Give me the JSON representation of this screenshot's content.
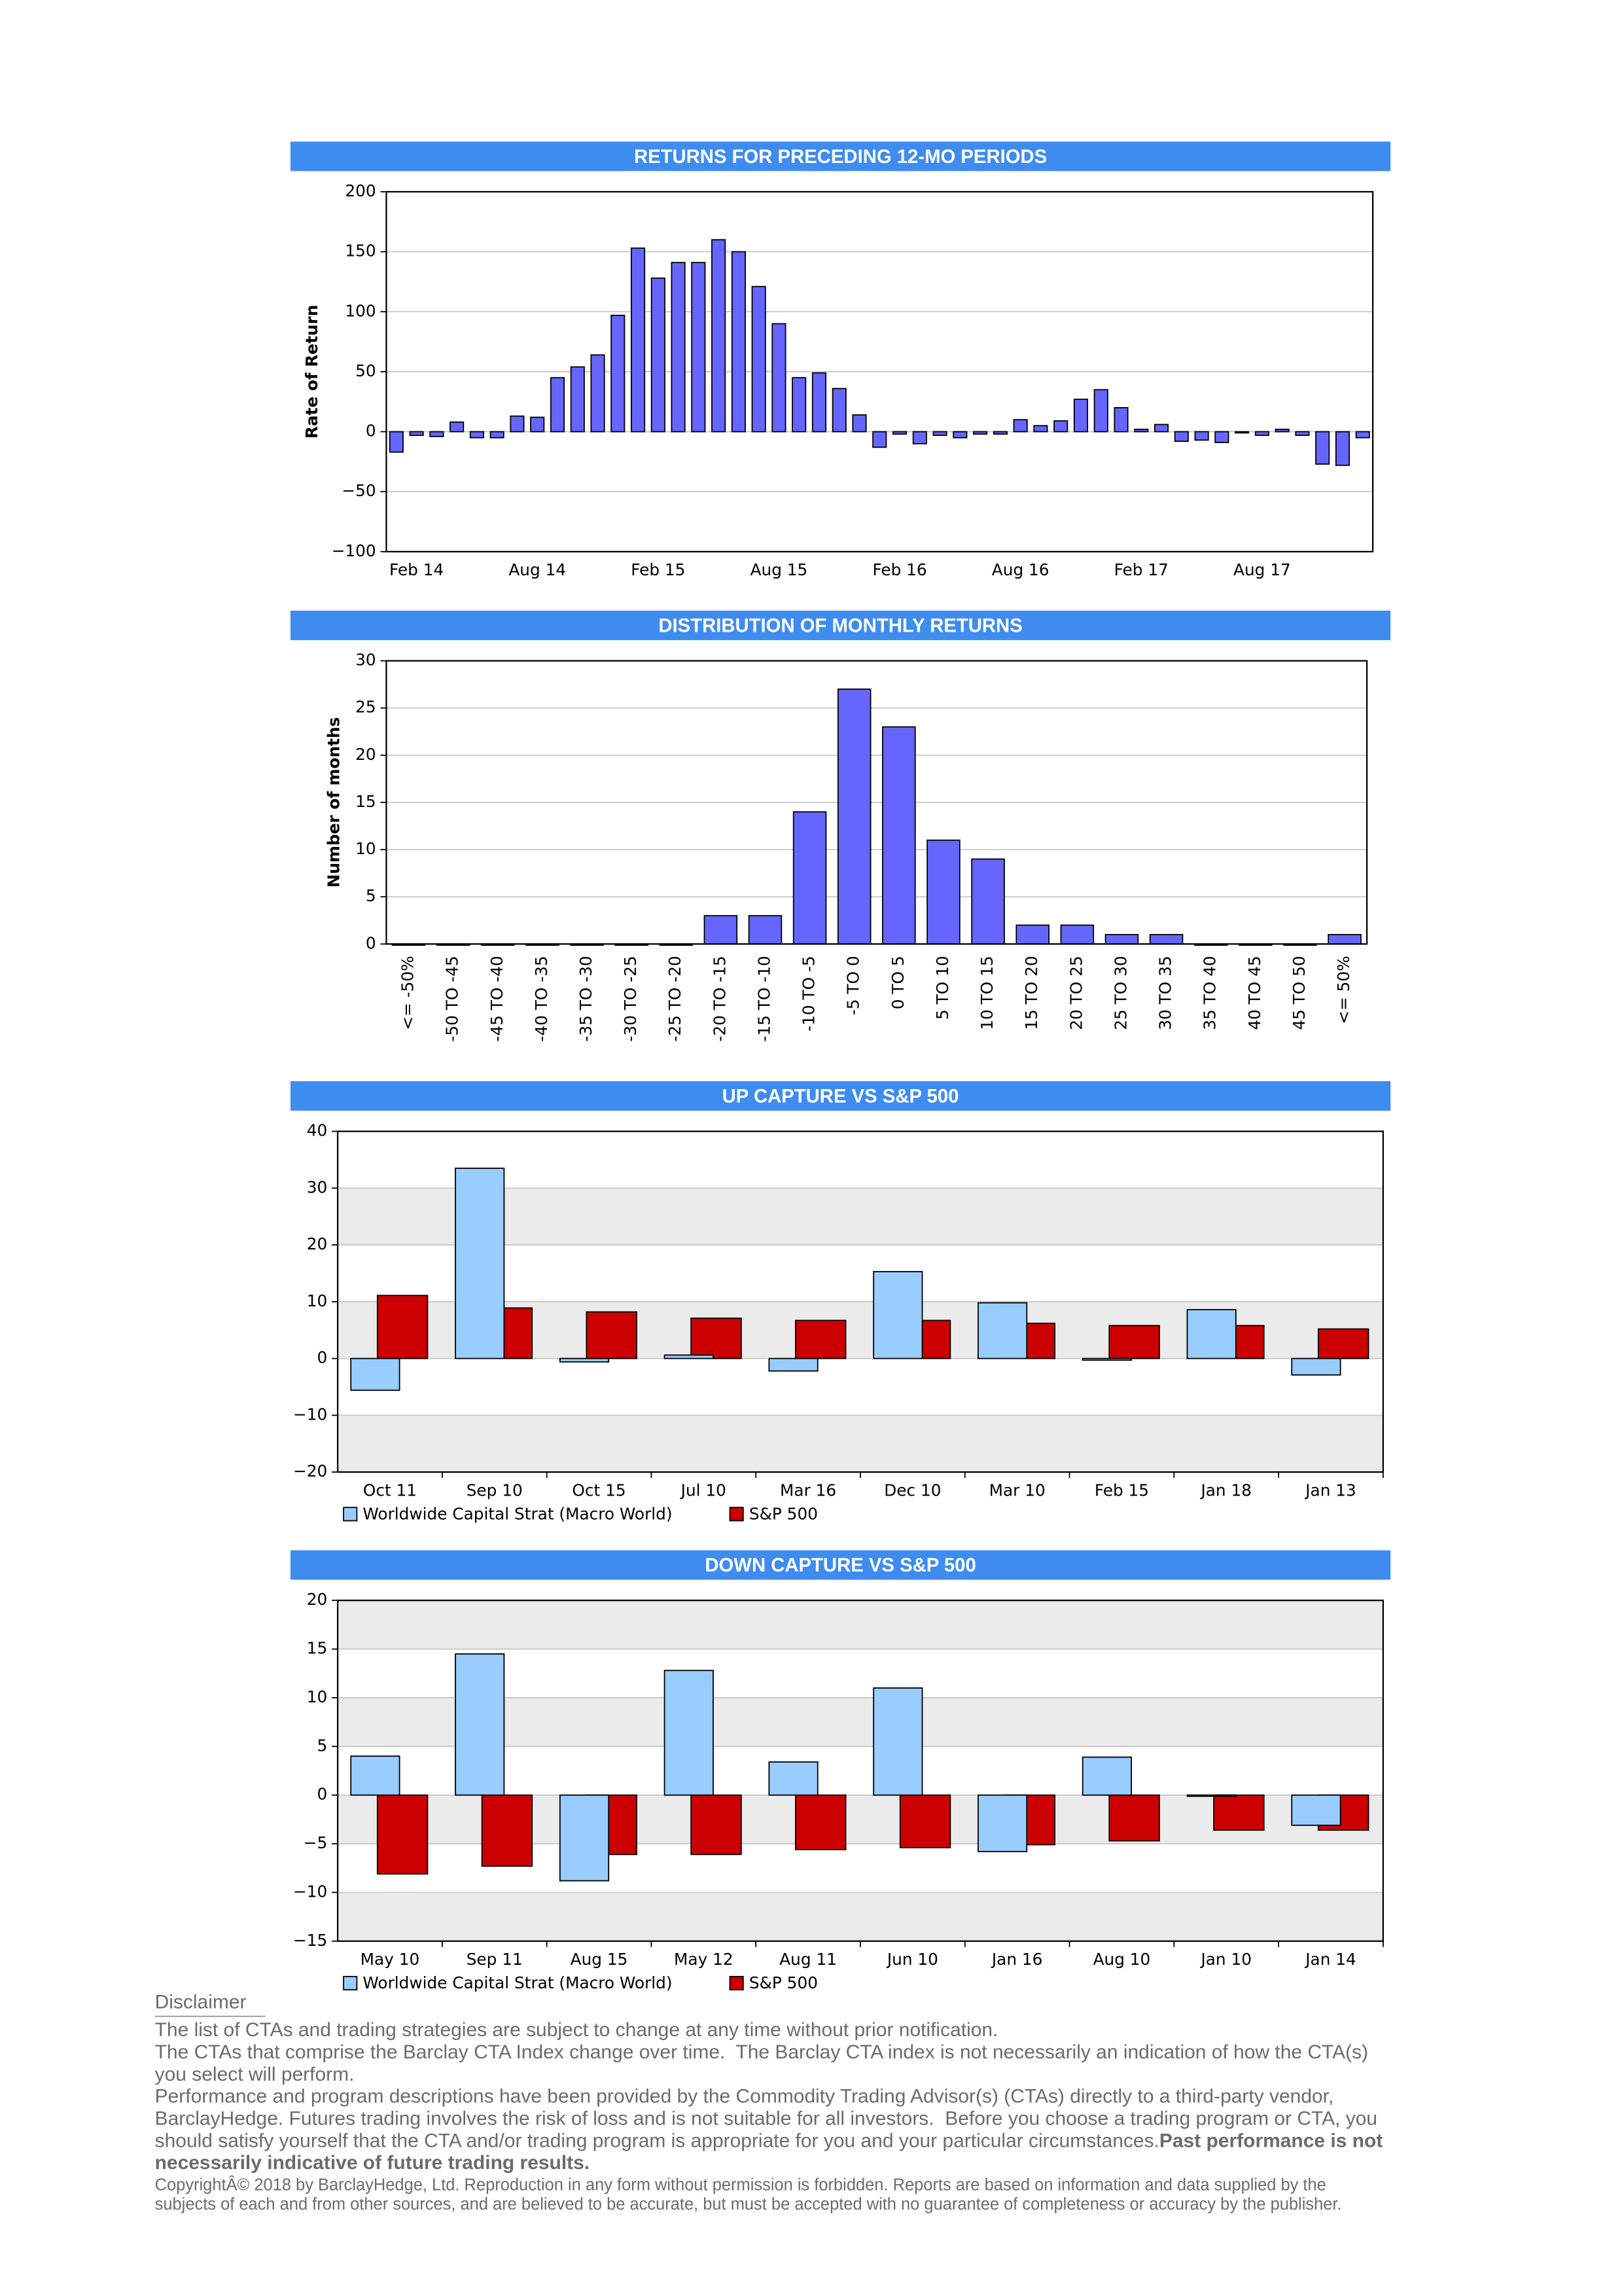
{
  "chart_data": [
    {
      "type": "bar",
      "title": "RETURNS FOR PRECEDING 12-MO PERIODS",
      "ylabel": "Rate of Return",
      "categories": [
        null,
        "Feb 14",
        null,
        null,
        null,
        null,
        null,
        "Aug 14",
        null,
        null,
        null,
        null,
        null,
        "Feb 15",
        null,
        null,
        null,
        null,
        null,
        "Aug 15",
        null,
        null,
        null,
        null,
        null,
        "Feb 16",
        null,
        null,
        null,
        null,
        null,
        "Aug 16",
        null,
        null,
        null,
        null,
        null,
        "Feb 17",
        null,
        null,
        null,
        null,
        null,
        "Aug 17",
        null,
        null,
        null,
        null,
        null
      ],
      "values": [
        -17,
        -3,
        -4,
        8,
        -5,
        -5,
        13,
        12,
        45,
        54,
        64,
        97,
        153,
        128,
        141,
        141,
        160,
        150,
        121,
        90,
        45,
        49,
        36,
        14,
        -13,
        -2,
        -10,
        -3,
        -5,
        -2,
        -2,
        10,
        5,
        9,
        27,
        35,
        20,
        2,
        6,
        -8,
        -7,
        -9,
        -1,
        -3,
        2,
        -3,
        -27,
        -28,
        -5
      ],
      "color": "#6666ff",
      "ylim": [
        -100,
        200
      ],
      "yticks": [
        {
          "value": -100,
          "label": "−100"
        },
        {
          "value": -50,
          "label": "−50"
        },
        0,
        50,
        100,
        150,
        200
      ],
      "grid": true
    },
    {
      "type": "bar",
      "title": "DISTRIBUTION OF MONTHLY RETURNS",
      "ylabel": "Number of months",
      "categories": [
        "<= -50%",
        "-50 TO -45",
        "-45 TO -40",
        "-40 TO -35",
        "-35 TO -30",
        "-30 TO -25",
        "-25 TO -20",
        "-20 TO -15",
        "-15 TO -10",
        "-10 TO -5",
        "-5 TO 0",
        "0 TO 5",
        "5 TO 10",
        "10 TO 15",
        "15 TO 20",
        "20 TO 25",
        "25 TO 30",
        "30 TO 35",
        "35 TO 40",
        "40 TO 45",
        "45 TO 50",
        "<= 50%"
      ],
      "values": [
        0,
        0,
        0,
        0,
        0,
        0,
        0,
        3,
        3,
        14,
        27,
        23,
        11,
        9,
        2,
        2,
        1,
        1,
        0,
        0,
        0,
        1
      ],
      "color": "#6666ff",
      "ylim": [
        0,
        30
      ],
      "yticks": [
        0,
        5,
        10,
        15,
        20,
        25,
        30
      ],
      "grid": true
    },
    {
      "type": "bar",
      "title": "UP CAPTURE VS S&P 500",
      "categories": [
        "Oct 11",
        "Sep 10",
        "Oct 15",
        "Jul 10",
        "Mar 16",
        "Dec 10",
        "Mar 10",
        "Feb 15",
        "Jan 18",
        "Jan 13"
      ],
      "series": [
        {
          "name": "Worldwide Capital Strat (Macro World)",
          "color": "#99ccff",
          "values": [
            -5.6,
            33.5,
            -0.6,
            0.6,
            -2.2,
            15.3,
            9.8,
            -0.3,
            8.6,
            -2.9
          ]
        },
        {
          "name": "S&P 500",
          "color": "#cc0000",
          "values": [
            11.1,
            8.9,
            8.2,
            7.1,
            6.7,
            6.7,
            6.2,
            5.8,
            5.8,
            5.2
          ]
        }
      ],
      "ylim": [
        -20,
        40
      ],
      "yticks": [
        {
          "value": -20,
          "label": "−20"
        },
        {
          "value": -10,
          "label": "−10"
        },
        0,
        10,
        20,
        30,
        40
      ],
      "grid": true,
      "bands": true,
      "legend": "bottom-left"
    },
    {
      "type": "bar",
      "title": "DOWN CAPTURE VS S&P 500",
      "categories": [
        "May 10",
        "Sep 11",
        "Aug 15",
        "May 12",
        "Aug 11",
        "Jun 10",
        "Jan 16",
        "Aug 10",
        "Jan 10",
        "Jan 14"
      ],
      "series": [
        {
          "name": "Worldwide Capital Strat (Macro World)",
          "color": "#99ccff",
          "values": [
            4.0,
            14.5,
            -8.8,
            12.8,
            3.4,
            11.0,
            -5.8,
            3.9,
            0,
            -3.1
          ]
        },
        {
          "name": "S&P 500",
          "color": "#cc0000",
          "values": [
            -8.1,
            -7.3,
            -6.1,
            -6.1,
            -5.6,
            -5.4,
            -5.1,
            -4.7,
            -3.6,
            -3.6
          ]
        }
      ],
      "ylim": [
        -15,
        20
      ],
      "yticks": [
        {
          "value": -15,
          "label": "−15"
        },
        {
          "value": -10,
          "label": "−10"
        },
        {
          "value": -5,
          "label": "−5"
        },
        0,
        5,
        10,
        15,
        20
      ],
      "grid": true,
      "bands": true,
      "legend": "bottom-left"
    }
  ],
  "disclaimer": {
    "title": "Disclaimer",
    "lines": [
      "The list of CTAs and trading strategies are subject to change at any time without prior notification.",
      "The CTAs that comprise the Barclay CTA Index change over time.  The Barclay CTA index is not necessarily an indication of how the CTA(s)",
      "you select will perform.",
      "Performance and program descriptions have been provided by the Commodity Trading Advisor(s) (CTAs) directly to a third-party vendor,",
      "BarclayHedge. Futures trading involves the risk of loss and is not suitable for all investors.  Before you choose a trading program or CTA, you",
      "should satisfy yourself that the CTA and/or trading program is appropriate for you and your particular circumstances."
    ],
    "bold": [
      "Past performance is not",
      "necessarily indicative of future trading results."
    ],
    "copyright": [
      "CopyrightÂ© 2018 by BarclayHedge, Ltd. Reproduction in any form without permission is forbidden. Reports are based on information and data supplied by the",
      "subjects of each and from other sources, and are believed to be accurate, but must be accepted with no guarantee of completeness or accuracy by the publisher."
    ]
  }
}
